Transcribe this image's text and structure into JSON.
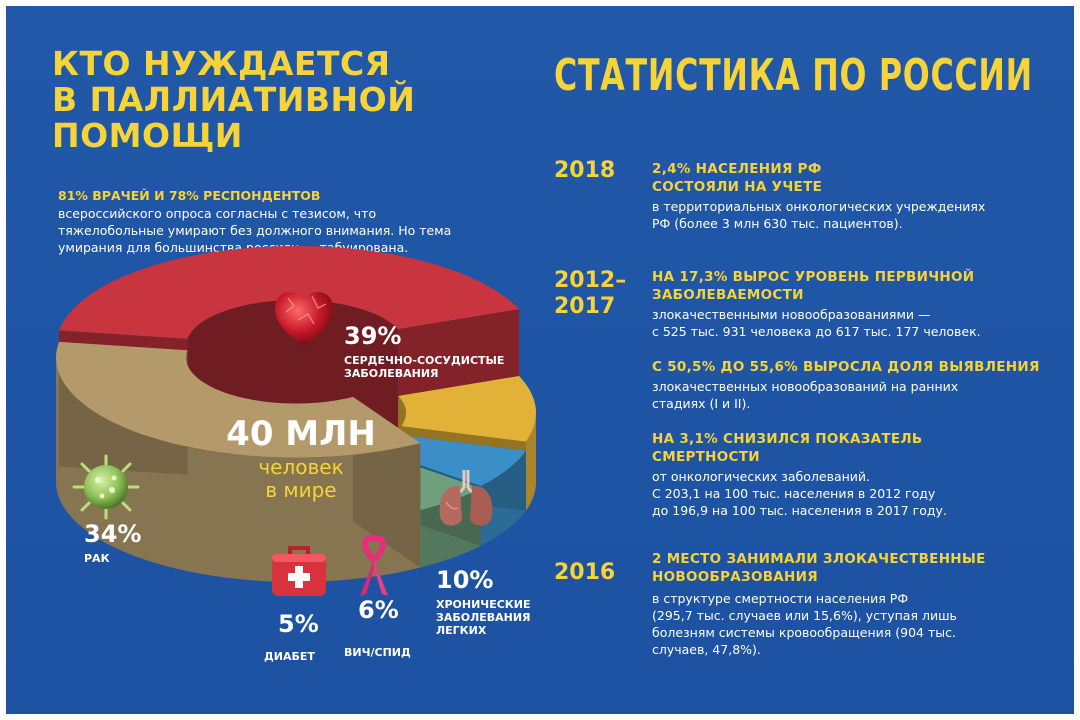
{
  "left": {
    "title_lines": [
      "КТО НУЖДАЕТСЯ",
      "В ПАЛЛИАТИВНОЙ",
      "ПОМОЩИ"
    ],
    "intro_head": "81% ВРАЧЕЙ И 78% РЕСПОНДЕНТОВ",
    "intro_lines": [
      "всероссийского опроса  согласны с тезисом, что",
      "тяжелобольные умирают без должного внимания. Но тема",
      "умирания для большинства россиян — табуирована."
    ]
  },
  "right": {
    "title": "СТАТИСТИКА ПО РОССИИ",
    "facts": [
      {
        "year_lines": [
          "2018"
        ],
        "head_lines": [
          "2,4% НАСЕЛЕНИЯ РФ",
          "СОСТОЯЛИ НА УЧЕТЕ"
        ],
        "text_lines": [
          "в территориальных онкологических учреждениях",
          "РФ (более 3 млн 630 тыс. пациентов)."
        ]
      },
      {
        "year_lines": [
          "2012–",
          "2017"
        ],
        "head_lines": [
          "НА 17,3% ВЫРОС УРОВЕНЬ ПЕРВИЧНОЙ",
          "ЗАБОЛЕВАЕМОСТИ"
        ],
        "text_lines": [
          "злокачественными новообразованиями —",
          "с 525 тыс. 931 человека  до 617 тыс. 177 человек."
        ]
      },
      {
        "year_lines": [],
        "head_lines": [
          "С 50,5% ДО 55,6% ВЫРОСЛА ДОЛЯ ВЫЯВЛЕНИЯ"
        ],
        "text_lines": [
          "злокачественных новообразований на ранних",
          "стадиях (I и II)."
        ]
      },
      {
        "year_lines": [],
        "head_lines": [
          "НА 3,1% СНИЗИЛСЯ ПОКАЗАТЕЛЬ",
          "СМЕРТНОСТИ"
        ],
        "text_lines": [
          "от онкологических заболеваний.",
          "С 203,1 на 100 тыс. населения в 2012 году",
          "до 196,9 на 100 тыс. населения в 2017 году."
        ]
      },
      {
        "year_lines": [
          "2016"
        ],
        "head_lines": [
          "2 МЕСТО ЗАНИМАЛИ ЗЛОКАЧЕСТВЕННЫЕ",
          "НОВООБРАЗОВАНИЯ"
        ],
        "text_lines": [
          "в структуре смертности населения РФ",
          "(295,7 тыс. случаев или 15,6%), уступая лишь",
          "болезням системы кровообращения (904 тыс.",
          "случаев, 47,8%)."
        ]
      }
    ]
  },
  "chart_data": {
    "type": "pie",
    "center_value": "40 МЛН",
    "center_text_lines": [
      "человек",
      "в мире"
    ],
    "slices": [
      {
        "label_lines": [
          "СЕРДЕЧНО-СОСУДИСТЫЕ",
          "ЗАБОЛЕВАНИЯ"
        ],
        "value": 39,
        "display": "39%",
        "color": "#c9353f",
        "icon": "heart-icon"
      },
      {
        "label_lines": [
          "ХРОНИЧЕСКИЕ",
          "ЗАБОЛЕВАНИЯ",
          "ЛЕГКИХ"
        ],
        "value": 10,
        "display": "10%",
        "color": "#e2b238",
        "icon": "lungs-icon"
      },
      {
        "label_lines": [
          "ВИЧ/СПИД"
        ],
        "value": 6,
        "display": "6%",
        "color": "#3b8fc8",
        "icon": "ribbon-icon"
      },
      {
        "label_lines": [
          "ДИАБЕТ"
        ],
        "value": 5,
        "display": "5%",
        "color": "#6fa07e",
        "icon": "first-aid-kit-icon"
      },
      {
        "label_lines": [
          "РАК"
        ],
        "value": 34,
        "display": "34%",
        "color": "#b49a6a",
        "icon": "virus-icon"
      }
    ]
  },
  "colors": {
    "background": "#1f56a6",
    "accent": "#f7d33a",
    "text": "#ffffff"
  }
}
